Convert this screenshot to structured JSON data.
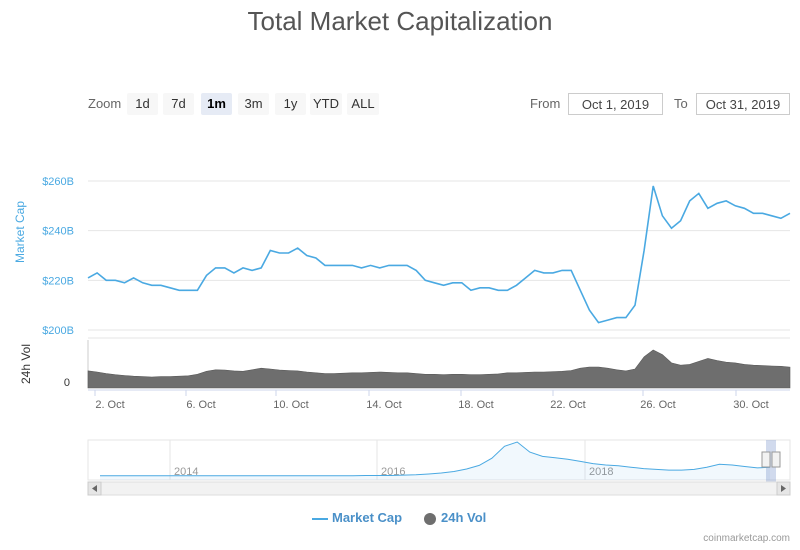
{
  "title": "Total Market Capitalization",
  "zoom": {
    "label": "Zoom",
    "buttons": [
      "1d",
      "7d",
      "1m",
      "3m",
      "1y",
      "YTD",
      "ALL"
    ],
    "active": "1m"
  },
  "range": {
    "from_label": "From",
    "from_value": "Oct 1, 2019",
    "to_label": "To",
    "to_value": "Oct 31, 2019"
  },
  "legend": {
    "market_cap": "Market Cap",
    "vol": "24h Vol"
  },
  "credit": "coinmarketcap.com",
  "colors": {
    "market_cap": "#4aa9e2",
    "vol": "#6e6e6e",
    "axis_text": "#666666",
    "ylabel": "#4aa9e2"
  },
  "chart_data": {
    "type": "line",
    "xlabel": "",
    "ylabel": "Market Cap",
    "ylim_billions": [
      200,
      260
    ],
    "ytick_labels": [
      "$200B",
      "$220B",
      "$240B",
      "$260B"
    ],
    "xtick_labels": [
      "2. Oct",
      "6. Oct",
      "10. Oct",
      "14. Oct",
      "18. Oct",
      "22. Oct",
      "26. Oct",
      "30. Oct"
    ],
    "series": [
      {
        "name": "Market Cap",
        "unit": "billion USD",
        "x_start": "2019-10-01",
        "x_end": "2019-10-31",
        "values": [
          221,
          223,
          220,
          220,
          219,
          221,
          219,
          218,
          218,
          217,
          216,
          216,
          216,
          222,
          225,
          225,
          223,
          225,
          224,
          225,
          232,
          231,
          231,
          233,
          230,
          229,
          226,
          226,
          226,
          226,
          225,
          226,
          225,
          226,
          226,
          226,
          224,
          220,
          219,
          218,
          219,
          219,
          216,
          217,
          217,
          216,
          216,
          218,
          221,
          224,
          223,
          223,
          224,
          224,
          216,
          208,
          203,
          204,
          205,
          205,
          210,
          232,
          258,
          246,
          241,
          244,
          252,
          255,
          249,
          251,
          252,
          250,
          249,
          247,
          247,
          246,
          245,
          247
        ]
      },
      {
        "name": "24h Vol",
        "values": [
          0.45,
          0.42,
          0.38,
          0.35,
          0.33,
          0.31,
          0.3,
          0.29,
          0.3,
          0.3,
          0.31,
          0.32,
          0.36,
          0.44,
          0.48,
          0.47,
          0.45,
          0.44,
          0.48,
          0.52,
          0.5,
          0.47,
          0.46,
          0.45,
          0.42,
          0.4,
          0.38,
          0.38,
          0.39,
          0.4,
          0.4,
          0.41,
          0.42,
          0.41,
          0.4,
          0.4,
          0.38,
          0.36,
          0.36,
          0.35,
          0.36,
          0.36,
          0.35,
          0.35,
          0.36,
          0.37,
          0.4,
          0.4,
          0.41,
          0.42,
          0.42,
          0.43,
          0.44,
          0.46,
          0.52,
          0.55,
          0.55,
          0.52,
          0.48,
          0.45,
          0.5,
          0.82,
          1.0,
          0.88,
          0.66,
          0.6,
          0.62,
          0.7,
          0.78,
          0.72,
          0.68,
          0.66,
          0.62,
          0.6,
          0.59,
          0.58,
          0.57,
          0.55
        ]
      }
    ],
    "navigator": {
      "tick_labels": [
        "2014",
        "2016",
        "2018"
      ],
      "values": [
        0.06,
        0.06,
        0.06,
        0.06,
        0.06,
        0.06,
        0.06,
        0.06,
        0.06,
        0.06,
        0.06,
        0.06,
        0.06,
        0.06,
        0.06,
        0.06,
        0.06,
        0.06,
        0.06,
        0.06,
        0.06,
        0.07,
        0.07,
        0.07,
        0.08,
        0.09,
        0.11,
        0.14,
        0.18,
        0.25,
        0.35,
        0.55,
        0.88,
        1.0,
        0.72,
        0.6,
        0.56,
        0.52,
        0.46,
        0.4,
        0.36,
        0.34,
        0.3,
        0.26,
        0.24,
        0.22,
        0.22,
        0.24,
        0.3,
        0.38,
        0.36,
        0.32,
        0.28,
        0.3
      ]
    }
  }
}
